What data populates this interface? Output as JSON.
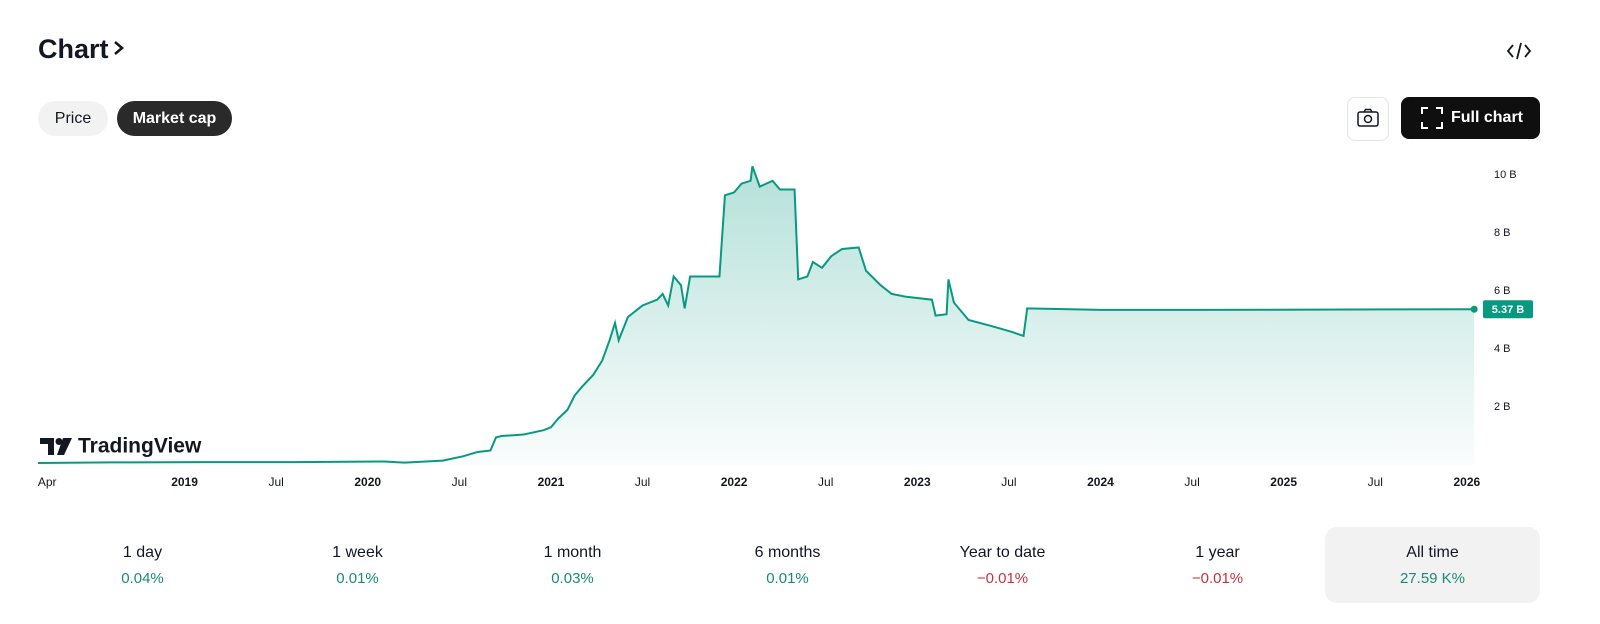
{
  "header": {
    "title": "Chart"
  },
  "tabs": [
    {
      "label": "Price",
      "active": false
    },
    {
      "label": "Market cap",
      "active": true
    }
  ],
  "full_chart_button": "Full chart",
  "chart_data": {
    "type": "area",
    "watermark": "TradingView",
    "color": "#089981",
    "x": [
      2018.2,
      2018.6,
      2019.1,
      2019.6,
      2020.09,
      2020.2,
      2020.41,
      2020.52,
      2020.6,
      2020.67,
      2020.7,
      2020.73,
      2020.85,
      2020.96,
      2021.0,
      2021.04,
      2021.09,
      2021.13,
      2021.17,
      2021.23,
      2021.28,
      2021.32,
      2021.35,
      2021.37,
      2021.42,
      2021.5,
      2021.58,
      2021.61,
      2021.64,
      2021.67,
      2021.71,
      2021.73,
      2021.76,
      2021.92,
      2021.95,
      2022.0,
      2022.04,
      2022.09,
      2022.1,
      2022.14,
      2022.21,
      2022.25,
      2022.33,
      2022.35,
      2022.4,
      2022.43,
      2022.48,
      2022.53,
      2022.59,
      2022.68,
      2022.72,
      2022.8,
      2022.86,
      2022.94,
      2023.08,
      2023.1,
      2023.16,
      2023.17,
      2023.2,
      2023.28,
      2023.4,
      2023.51,
      2023.58,
      2023.6,
      2024.0,
      2024.54,
      2026.04
    ],
    "values": [
      0.07,
      0.09,
      0.1,
      0.1,
      0.12,
      0.08,
      0.15,
      0.3,
      0.45,
      0.5,
      0.95,
      1.0,
      1.05,
      1.2,
      1.3,
      1.6,
      1.9,
      2.4,
      2.7,
      3.1,
      3.6,
      4.3,
      4.9,
      4.3,
      5.1,
      5.5,
      5.7,
      5.9,
      5.5,
      6.5,
      6.2,
      5.4,
      6.5,
      6.5,
      9.3,
      9.4,
      9.7,
      9.8,
      10.3,
      9.6,
      9.8,
      9.5,
      9.5,
      6.4,
      6.5,
      7.0,
      6.8,
      7.2,
      7.45,
      7.5,
      6.7,
      6.2,
      5.9,
      5.8,
      5.7,
      5.15,
      5.2,
      6.4,
      5.6,
      5.0,
      4.8,
      4.6,
      4.45,
      5.4,
      5.35,
      5.35,
      5.37
    ],
    "value_labels": [
      null,
      null,
      null,
      null,
      null,
      null,
      null,
      null,
      null,
      null,
      null,
      null,
      null,
      null,
      null,
      null,
      null,
      null,
      null,
      null,
      null,
      null,
      null,
      null,
      null,
      null,
      null,
      null,
      null,
      null,
      null,
      null,
      null,
      null,
      null,
      null,
      null,
      null,
      null,
      null,
      null,
      null,
      null,
      null,
      null,
      null,
      null,
      null,
      null,
      null,
      null,
      null,
      null,
      null,
      null,
      null,
      null,
      null,
      null,
      null,
      null,
      null,
      null,
      null,
      null,
      null,
      "5.37 B"
    ],
    "xlim": [
      2018.2,
      2026.05
    ],
    "xticks": [
      {
        "value": 2018.25,
        "label": "Apr"
      },
      2019,
      {
        "value": 2019.5,
        "label": "Jul"
      },
      2020,
      {
        "value": 2020.5,
        "label": "Jul"
      },
      2021,
      {
        "value": 2021.5,
        "label": "Jul"
      },
      2022,
      {
        "value": 2022.5,
        "label": "Jul"
      },
      2023,
      {
        "value": 2023.5,
        "label": "Jul"
      },
      2024,
      {
        "value": 2024.5,
        "label": "Jul"
      },
      2025,
      {
        "value": 2025.5,
        "label": "Jul"
      },
      2026
    ],
    "ylim": [
      0,
      10.5
    ],
    "yticks": [
      {
        "value": 2,
        "label": "2 B"
      },
      {
        "value": 4,
        "label": "4 B"
      },
      {
        "value": 6,
        "label": "6 B"
      },
      {
        "value": 8,
        "label": "8 B"
      },
      {
        "value": 10,
        "label": "10 B"
      }
    ]
  },
  "periods": [
    {
      "label": "1 day",
      "change": "0.04%",
      "color": "#1b8a78",
      "selected": false
    },
    {
      "label": "1 week",
      "change": "0.01%",
      "color": "#1b8a78",
      "selected": false
    },
    {
      "label": "1 month",
      "change": "0.03%",
      "color": "#1b8a78",
      "selected": false
    },
    {
      "label": "6 months",
      "change": "0.01%",
      "color": "#1b8a78",
      "selected": false
    },
    {
      "label": "Year to date",
      "change": "−0.01%",
      "color": "#c8323e",
      "selected": false
    },
    {
      "label": "1 year",
      "change": "−0.01%",
      "color": "#c8323e",
      "selected": false
    },
    {
      "label": "All time",
      "change": "27.59 K%",
      "color": "#1b8a78",
      "selected": true
    }
  ]
}
